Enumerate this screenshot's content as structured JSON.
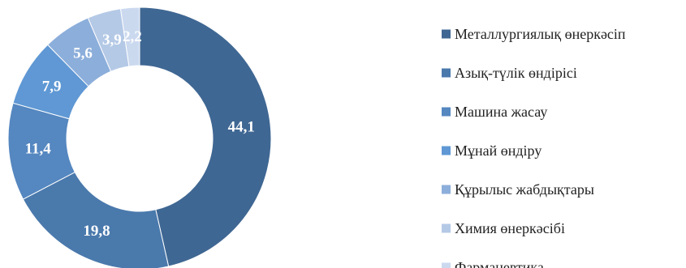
{
  "chart_data": {
    "type": "pie",
    "variant": "donut",
    "title": "",
    "legend_position": "right",
    "categories": [
      "Металлургиялық өнеркәсіп",
      "Азық-түлік өндірісі",
      "Машина жасау",
      "Мұнай өндіру",
      "Құрылыс жабдықтары",
      "Химия өнеркәсібі",
      "Фармацевтика"
    ],
    "values": [
      44.1,
      19.8,
      11.4,
      7.9,
      5.6,
      3.9,
      2.2
    ],
    "value_labels": [
      "44,1",
      "19,8",
      "11,4",
      "7,9",
      "5,6",
      "3,9",
      "2,2"
    ],
    "colors": [
      "#3f6793",
      "#4a79ac",
      "#5587c0",
      "#5f98d4",
      "#8caedb",
      "#b4c9e6",
      "#cbd9ef"
    ]
  }
}
